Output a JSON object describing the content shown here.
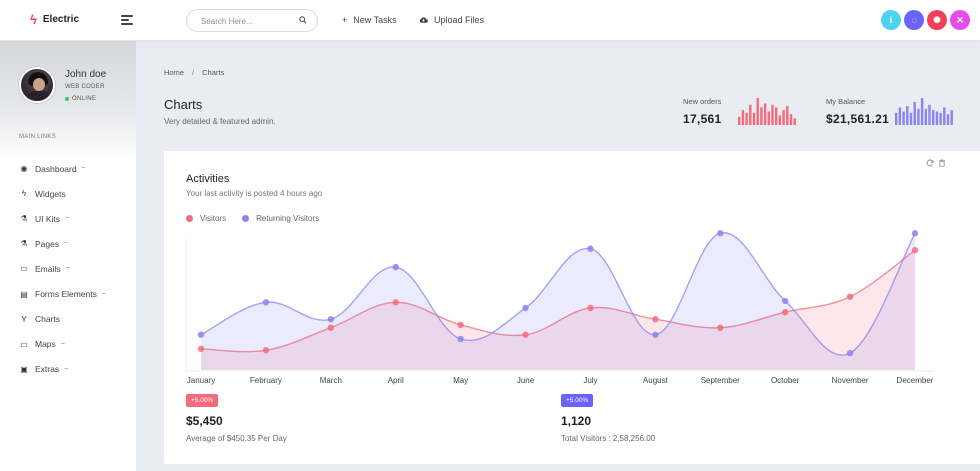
{
  "app": {
    "logo_text": "Electric",
    "search_placeholder": "Search Here...",
    "nav": {
      "new_tasks": "New Tasks",
      "upload_files": "Upload Files"
    },
    "header_icons": [
      {
        "name": "info-icon",
        "glyph": "i",
        "color": "#4fd1f0"
      },
      {
        "name": "chat-icon",
        "glyph": "◌",
        "color": "#6b63f5"
      },
      {
        "name": "settings-icon",
        "glyph": "✺",
        "color": "#f2405a"
      },
      {
        "name": "fullscreen-icon",
        "glyph": "✕",
        "color": "#e44ee9"
      }
    ]
  },
  "sidebar": {
    "user": {
      "name": "John doe",
      "role": "WEB CODER",
      "status": "ONLINE"
    },
    "section_label": "MAIN LINKS",
    "items": [
      {
        "label": "Dashboard",
        "icon": "dashboard-icon",
        "glyph": "◉",
        "caret": "~"
      },
      {
        "label": "Widgets",
        "icon": "bolt-icon",
        "glyph": "ϟ",
        "caret": ""
      },
      {
        "label": "UI Kits",
        "icon": "flask-icon",
        "glyph": "⚗",
        "caret": "~"
      },
      {
        "label": "Pages",
        "icon": "flask-icon",
        "glyph": "⚗",
        "caret": "~"
      },
      {
        "label": "Emails",
        "icon": "inbox-icon",
        "glyph": "▭",
        "caret": "~"
      },
      {
        "label": "Forms Elements",
        "icon": "form-icon",
        "glyph": "▤",
        "caret": "~"
      },
      {
        "label": "Charts",
        "icon": "filter-icon",
        "glyph": "Y",
        "caret": ""
      },
      {
        "label": "Maps",
        "icon": "map-icon",
        "glyph": "▭",
        "caret": "~"
      },
      {
        "label": "Extras",
        "icon": "gift-icon",
        "glyph": "▣",
        "caret": "~"
      }
    ]
  },
  "breadcrumb": {
    "home": "Home",
    "separator": "/",
    "current": "Charts"
  },
  "page": {
    "title": "Charts",
    "subtitle": "Very detailed & featured admin."
  },
  "stats": {
    "new_orders": {
      "label": "New orders",
      "value": "17,561",
      "color": "#f46b7b",
      "bars": [
        0.3,
        0.55,
        0.45,
        0.75,
        0.45,
        1.0,
        0.65,
        0.8,
        0.5,
        0.75,
        0.65,
        0.35,
        0.55,
        0.7,
        0.4,
        0.25
      ]
    },
    "my_balance": {
      "label": "My Balance",
      "value": "$21,561.21",
      "color": "#8a84f0",
      "bars": [
        0.45,
        0.65,
        0.5,
        0.7,
        0.45,
        0.85,
        0.6,
        1.0,
        0.6,
        0.75,
        0.55,
        0.5,
        0.45,
        0.65,
        0.4,
        0.55
      ]
    }
  },
  "card": {
    "title": "Activities",
    "subtitle": "Your last activity is posted 4 hours ago",
    "tools": [
      "refresh-icon",
      "trash-icon"
    ]
  },
  "chart_data": {
    "type": "area",
    "categories": [
      "January",
      "February",
      "March",
      "April",
      "May",
      "June",
      "July",
      "August",
      "September",
      "October",
      "November",
      "December"
    ],
    "ylim": [
      0,
      100
    ],
    "grid": false,
    "legend_position": "top-left",
    "series": [
      {
        "name": "Visitors",
        "color": "#f46b7b",
        "fill": "rgba(244,107,123,0.16)",
        "values": [
          15,
          14,
          30,
          48,
          32,
          25,
          44,
          36,
          30,
          41,
          52,
          85
        ]
      },
      {
        "name": "Returning Visitors",
        "color": "#8a84f0",
        "fill": "rgba(138,132,240,0.16)",
        "values": [
          25,
          48,
          36,
          73,
          22,
          44,
          86,
          25,
          97,
          49,
          12,
          97
        ]
      }
    ]
  },
  "summary": [
    {
      "badge": "+5.00%",
      "badge_color": "#f46b7b",
      "value": "$5,450",
      "note": "Average of $450.35 Per Day"
    },
    {
      "badge": "+5.00%",
      "badge_color": "#6b63f5",
      "value": "1,120",
      "note": "Total Visitors : 2,58,256.00"
    }
  ]
}
